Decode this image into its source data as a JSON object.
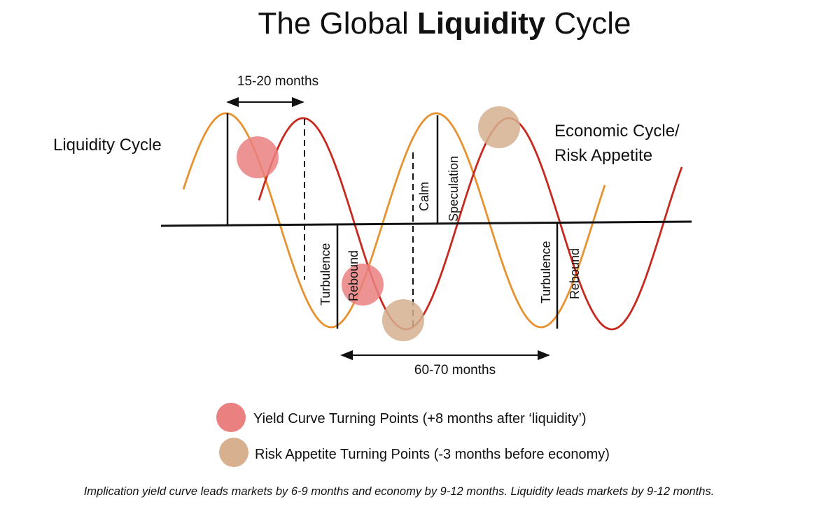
{
  "title": {
    "prefix": "The Global ",
    "bold": "Liquidity",
    "suffix": " Cycle"
  },
  "curves": {
    "liquidity": {
      "label": "Liquidity Cycle",
      "color": "#e8912f"
    },
    "economic": {
      "label_line1": "Economic Cycle/",
      "label_line2": "Risk Appetite",
      "color": "#c8281e"
    }
  },
  "spans": {
    "short": "15-20 months",
    "long": "60-70 months"
  },
  "phases": {
    "turbulence": "Turbulence",
    "rebound": "Rebound",
    "calm": "Calm",
    "speculation": "Speculation"
  },
  "turning_points": {
    "yield_curve": {
      "color": "#ea8080"
    },
    "risk_appetite": {
      "color": "#d6b08f"
    }
  },
  "legend": [
    {
      "label": "Yield Curve Turning Points (+8 months after ‘liquidity’)",
      "color": "#ea8080"
    },
    {
      "label": "Risk Appetite Turning Points (-3 months before economy)",
      "color": "#d6b08f"
    }
  ],
  "footnote": "Implication yield curve leads markets by 6-9 months and economy by 9-12 months. Liquidity leads markets by 9-12 months."
}
